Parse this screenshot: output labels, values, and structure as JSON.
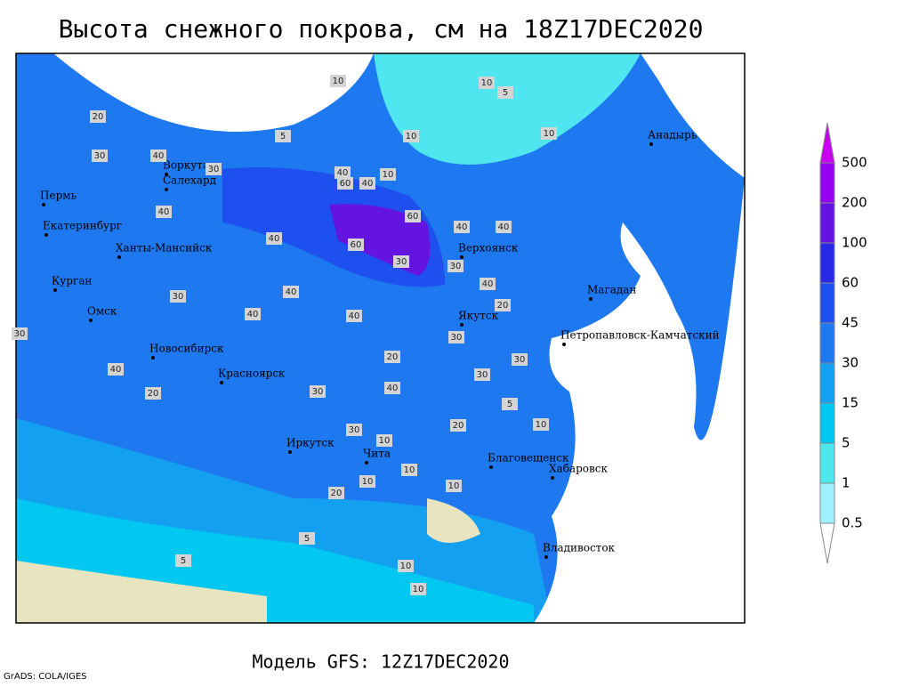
{
  "title": "Высота снежного покрова, см на 18Z17DEC2020",
  "footer": "Модель GFS: 12Z17DEC2020",
  "credit": "GrADS: COLA/IGES",
  "legend": {
    "levels": [
      0.5,
      1,
      5,
      15,
      30,
      45,
      60,
      100,
      200,
      500
    ],
    "colors": [
      "#ffffff",
      "#a0f0ff",
      "#50e6f0",
      "#00c8f0",
      "#14a0f0",
      "#1e78f0",
      "#1e50f0",
      "#2828e6",
      "#6414e0",
      "#9600f0",
      "#c800f0"
    ]
  },
  "cities": [
    "Воркута",
    "Салехард",
    "Пермь",
    "Екатеринбург",
    "Ханты-Мансийск",
    "Курган",
    "Омск",
    "Новосибирск",
    "Красноярск",
    "Иркутск",
    "Чита",
    "Благовещенск",
    "Хабаровск",
    "Владивосток",
    "Якутск",
    "Верхоянск",
    "Магадан",
    "Петропавловск-Камчатский",
    "Анадырь"
  ],
  "contour_labels": [
    10,
    10,
    5,
    10,
    10,
    5,
    20,
    30,
    40,
    30,
    40,
    60,
    40,
    10,
    40,
    40,
    60,
    40,
    40,
    60,
    30,
    30,
    40,
    40,
    30,
    40,
    40,
    30,
    20,
    30,
    30,
    20,
    30,
    40,
    20,
    10,
    10,
    10,
    5,
    5,
    10,
    10,
    20,
    20,
    30,
    40,
    30,
    10,
    5,
    10
  ]
}
